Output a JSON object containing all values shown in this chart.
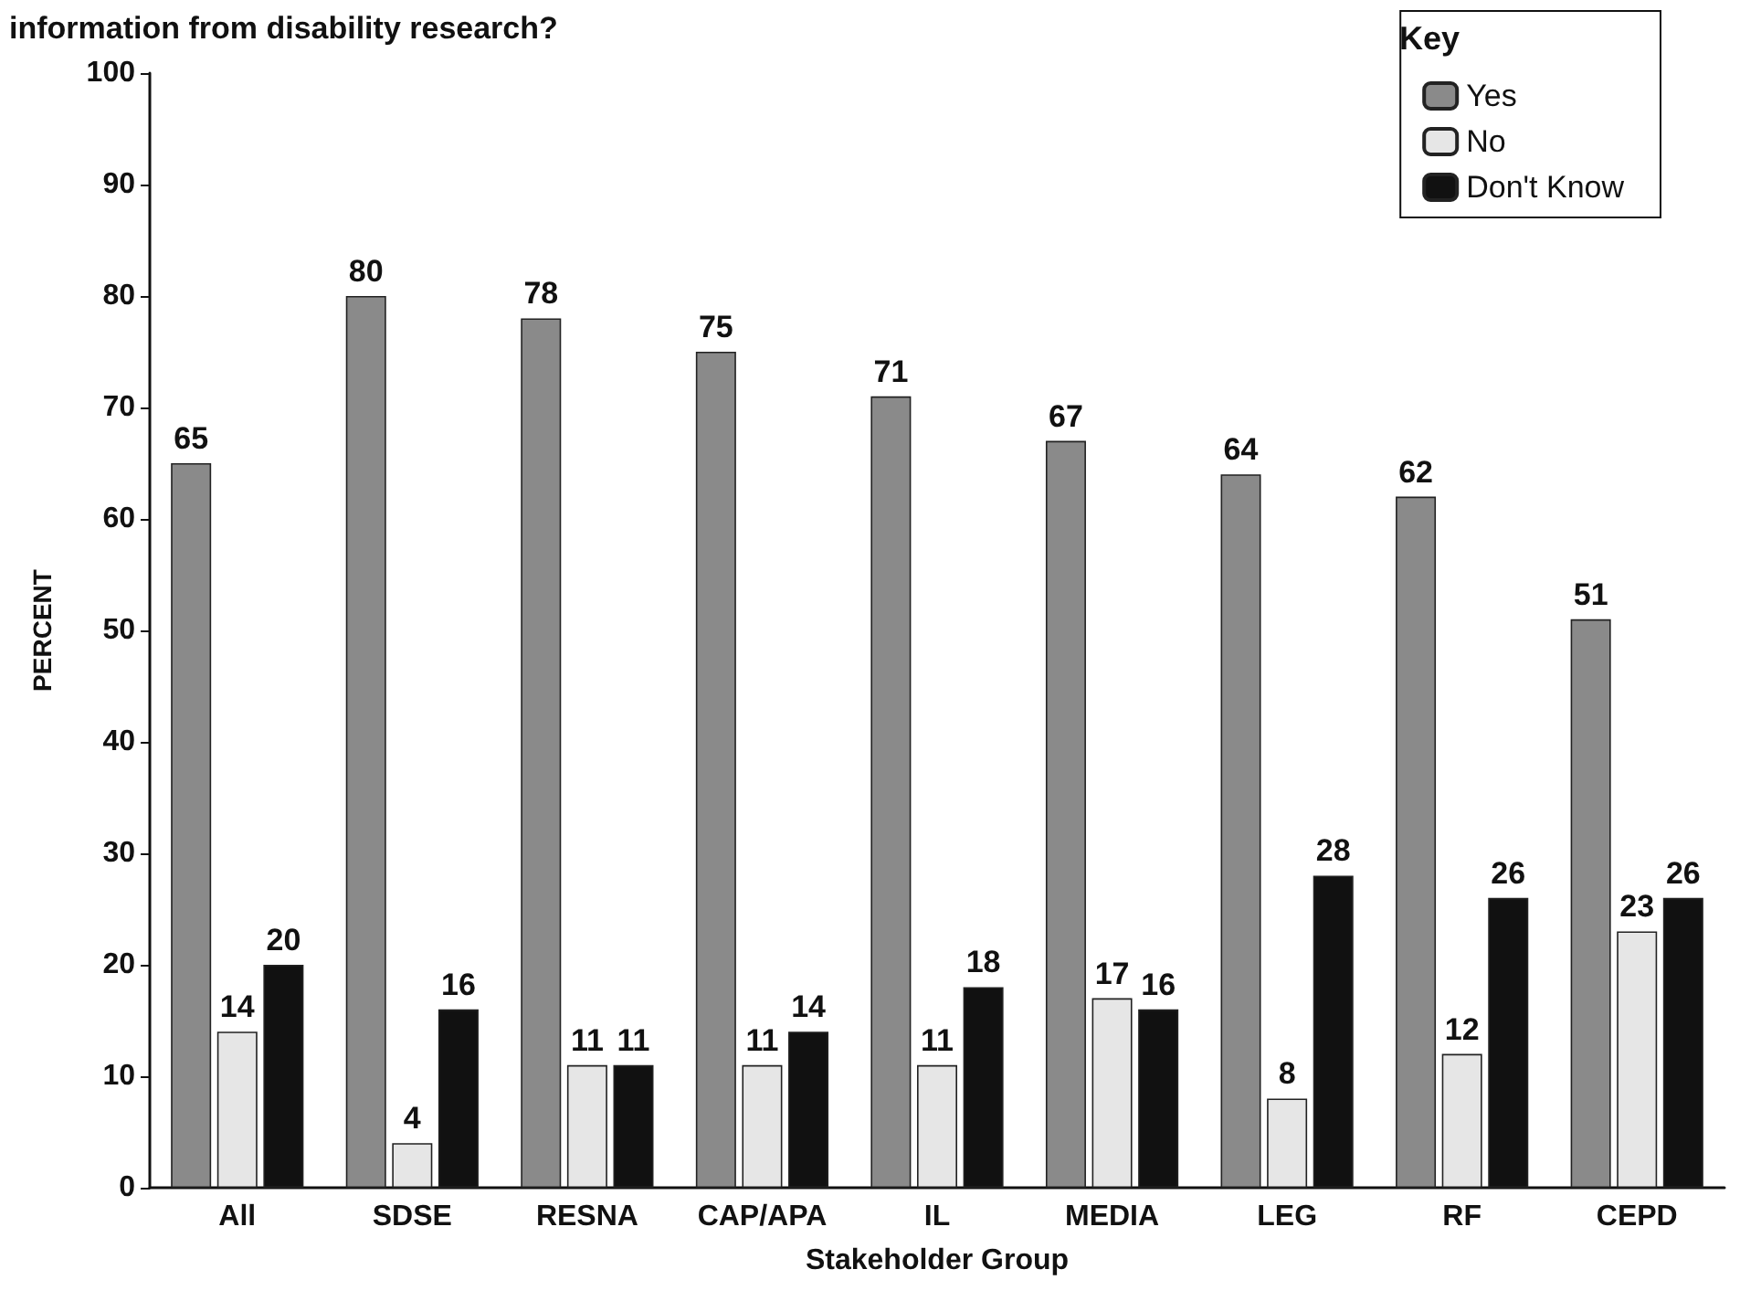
{
  "chart_data": {
    "type": "bar",
    "title": "information from disability research?",
    "categories": [
      "All",
      "SDSE",
      "RESNA",
      "CAP/APA",
      "IL",
      "MEDIA",
      "LEG",
      "RF",
      "CEPD"
    ],
    "series": [
      {
        "name": "Yes",
        "color": "#8a8a8a",
        "values": [
          65,
          80,
          78,
          75,
          71,
          67,
          64,
          62,
          51
        ]
      },
      {
        "name": "No",
        "color": "#e6e6e6",
        "values": [
          14,
          4,
          11,
          11,
          11,
          17,
          8,
          12,
          23
        ]
      },
      {
        "name": "Don't Know",
        "color": "#111111",
        "values": [
          20,
          16,
          11,
          14,
          18,
          16,
          28,
          26,
          26
        ]
      }
    ],
    "xlabel": "Stakeholder Group",
    "ylabel": "PERCENT",
    "legend_title": "Key",
    "ylim": [
      0,
      100
    ],
    "yticks": [
      0,
      10,
      20,
      30,
      40,
      50,
      60,
      70,
      80,
      90,
      100
    ],
    "data_labels": true,
    "grid": false,
    "legend": "top right"
  }
}
